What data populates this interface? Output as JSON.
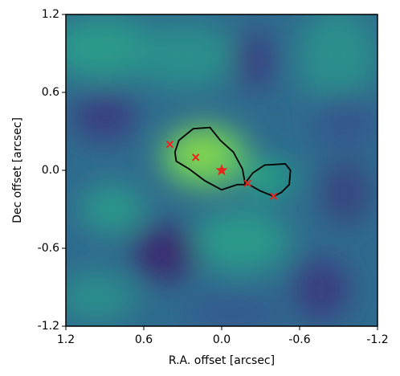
{
  "chart_data": {
    "type": "scatter",
    "x_label": "R.A. offset [arcsec]",
    "y_label": "Dec offset [arcsec]",
    "xlim": [
      1.2,
      -1.2
    ],
    "ylim": [
      -1.2,
      1.2
    ],
    "xticks": [
      1.2,
      0.6,
      {
        "value": 0,
        "label": "0.0"
      },
      -0.6,
      -1.2
    ],
    "yticks": [
      -1.2,
      -0.6,
      {
        "value": 0,
        "label": "0.0"
      },
      0.6,
      1.2
    ],
    "points": {
      "x": [
        0.4,
        0.2,
        -0.2,
        -0.4
      ],
      "y": [
        0.2,
        0.1,
        -0.1,
        -0.2
      ],
      "color": "#e8241c"
    },
    "star": {
      "x": 0,
      "y": 0,
      "color": "#e8241c"
    },
    "contour": {
      "x": [
        0.36,
        0.33,
        0.22,
        0.09,
        0.01,
        -0.09,
        -0.16,
        -0.18,
        -0.24,
        -0.33,
        -0.49,
        -0.53,
        -0.52,
        -0.46,
        -0.4,
        -0.3,
        -0.21,
        -0.12,
        0.0,
        0.13,
        0.25,
        0.35
      ],
      "y": [
        0.14,
        0.23,
        0.32,
        0.33,
        0.23,
        0.14,
        0.01,
        -0.1,
        -0.02,
        0.04,
        0.05,
        0.0,
        -0.11,
        -0.17,
        -0.2,
        -0.16,
        -0.11,
        -0.11,
        -0.15,
        -0.08,
        0.01,
        0.07
      ],
      "color": "#000000"
    }
  }
}
